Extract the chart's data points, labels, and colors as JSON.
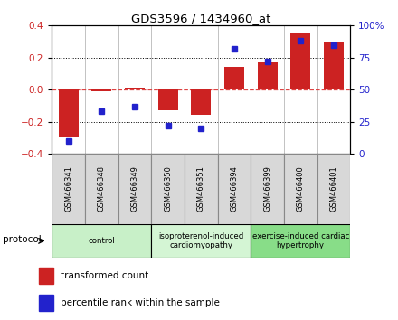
{
  "title": "GDS3596 / 1434960_at",
  "samples": [
    "GSM466341",
    "GSM466348",
    "GSM466349",
    "GSM466350",
    "GSM466351",
    "GSM466394",
    "GSM466399",
    "GSM466400",
    "GSM466401"
  ],
  "transformed_count": [
    -0.3,
    -0.01,
    0.01,
    -0.13,
    -0.16,
    0.14,
    0.17,
    0.35,
    0.3
  ],
  "percentile_rank": [
    10,
    33,
    37,
    22,
    20,
    82,
    72,
    88,
    85
  ],
  "bar_color": "#cc2222",
  "dot_color": "#2222cc",
  "ylim_left": [
    -0.4,
    0.4
  ],
  "ylim_right": [
    0,
    100
  ],
  "yticks_left": [
    -0.4,
    -0.2,
    0.0,
    0.2,
    0.4
  ],
  "yticks_right": [
    0,
    25,
    50,
    75,
    100
  ],
  "ytick_labels_right": [
    "0",
    "25",
    "50",
    "75",
    "100%"
  ],
  "groups": [
    {
      "label": "control",
      "start": 0,
      "end": 2,
      "color": "#c8f0c8"
    },
    {
      "label": "isoproterenol-induced\ncardiomyopathy",
      "start": 3,
      "end": 5,
      "color": "#d4f5d4"
    },
    {
      "label": "exercise-induced cardiac\nhypertrophy",
      "start": 6,
      "end": 8,
      "color": "#88dd88"
    }
  ],
  "legend_bar_label": "transformed count",
  "legend_dot_label": "percentile rank within the sample",
  "protocol_label": "protocol",
  "background_color": "#ffffff",
  "zero_line_color": "#dd4444",
  "cell_bg_color": "#d8d8d8",
  "cell_edge_color": "#888888"
}
